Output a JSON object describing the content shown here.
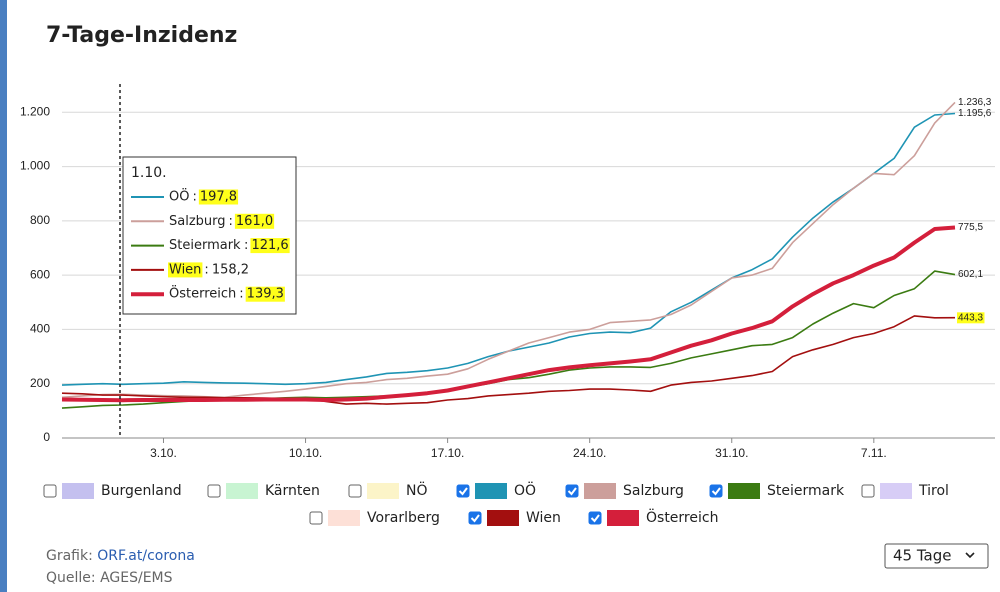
{
  "chart_data": {
    "type": "line",
    "title": "7-Tage-Inzidenz",
    "categories": [
      null,
      null,
      null,
      null,
      null,
      "3.10.",
      null,
      null,
      null,
      null,
      null,
      null,
      "10.10.",
      null,
      null,
      null,
      null,
      null,
      null,
      "17.10.",
      null,
      null,
      null,
      null,
      null,
      null,
      "24.10.",
      null,
      null,
      null,
      null,
      null,
      null,
      "31.10.",
      null,
      null,
      null,
      null,
      null,
      null,
      "7.11.",
      null,
      null,
      null,
      null
    ],
    "ylim": [
      0,
      1260
    ],
    "yticks": [
      0,
      200,
      400,
      600,
      800,
      {
        "value": 1000,
        "label": "1.000"
      },
      {
        "value": 1200,
        "label": "1.200"
      }
    ],
    "grid": true,
    "tooltip": {
      "title": "1.10.",
      "separator": ":"
    },
    "series": [
      {
        "name": "Burgenland",
        "color": "#c4c0ef",
        "checked": false
      },
      {
        "name": "Kärnten",
        "color": "#c8f4d2",
        "checked": false
      },
      {
        "name": "NÖ",
        "color": "#fcf4c8",
        "checked": false
      },
      {
        "name": "OÖ",
        "color": "#1f94b4",
        "checked": true,
        "tooltip_label": "197,8",
        "values": [
          195,
          198,
          200,
          197.8,
          200,
          202,
          207,
          205,
          203,
          202,
          200,
          198,
          200,
          205,
          215,
          225,
          238,
          242,
          248,
          258,
          275,
          300,
          320,
          335,
          350,
          372,
          385,
          390,
          388,
          405,
          465,
          500,
          545,
          590,
          620,
          660,
          740,
          810,
          870,
          920,
          975,
          1030,
          1145,
          1190,
          1195.6
        ],
        "value_labels": [
          null,
          null,
          null,
          null,
          null,
          null,
          null,
          null,
          null,
          null,
          null,
          null,
          null,
          null,
          null,
          null,
          null,
          null,
          null,
          null,
          null,
          null,
          null,
          null,
          null,
          null,
          null,
          null,
          null,
          null,
          null,
          null,
          null,
          null,
          null,
          null,
          null,
          null,
          null,
          null,
          null,
          null,
          null,
          null,
          "1.195,6"
        ]
      },
      {
        "name": "Salzburg",
        "color": "#cc9f9b",
        "checked": true,
        "tooltip_label": "161,0",
        "values": [
          150,
          155,
          160,
          161.0,
          158,
          156,
          155,
          152,
          150,
          158,
          165,
          172,
          180,
          190,
          200,
          205,
          215,
          220,
          228,
          235,
          255,
          290,
          320,
          350,
          370,
          390,
          400,
          425,
          430,
          435,
          455,
          490,
          540,
          590,
          600,
          625,
          720,
          790,
          860,
          920,
          975,
          970,
          1040,
          1160,
          1236.3
        ],
        "value_labels": [
          null,
          null,
          null,
          null,
          null,
          null,
          null,
          null,
          null,
          null,
          null,
          null,
          null,
          null,
          null,
          null,
          null,
          null,
          null,
          null,
          null,
          null,
          null,
          null,
          null,
          null,
          null,
          null,
          null,
          null,
          null,
          null,
          null,
          null,
          null,
          null,
          null,
          null,
          null,
          null,
          null,
          null,
          null,
          null,
          "1.236,3"
        ]
      },
      {
        "name": "Steiermark",
        "color": "#3b7b12",
        "checked": true,
        "tooltip_label": "121,6",
        "values": [
          110,
          115,
          120,
          121.6,
          125,
          130,
          135,
          138,
          140,
          142,
          145,
          148,
          150,
          148,
          150,
          152,
          155,
          160,
          168,
          178,
          188,
          200,
          215,
          222,
          235,
          250,
          258,
          262,
          262,
          260,
          275,
          295,
          310,
          325,
          340,
          345,
          370,
          420,
          460,
          495,
          480,
          525,
          550,
          615,
          602.1
        ],
        "value_labels": [
          null,
          null,
          null,
          null,
          null,
          null,
          null,
          null,
          null,
          null,
          null,
          null,
          null,
          null,
          null,
          null,
          null,
          null,
          null,
          null,
          null,
          null,
          null,
          null,
          null,
          null,
          null,
          null,
          null,
          null,
          null,
          null,
          null,
          null,
          null,
          null,
          null,
          null,
          null,
          null,
          null,
          null,
          null,
          null,
          "602,1"
        ]
      },
      {
        "name": "Tirol",
        "color": "#d7cdf6",
        "checked": false
      },
      {
        "name": "Vorarlberg",
        "color": "#fde0d7",
        "checked": false
      },
      {
        "name": "Wien",
        "color": "#a30f0f",
        "checked": true,
        "tooltip_label": "158,2",
        "values": [
          165,
          163,
          158,
          158.2,
          155,
          152,
          150,
          150,
          148,
          148,
          147,
          145,
          145,
          135,
          125,
          128,
          125,
          128,
          130,
          140,
          145,
          155,
          160,
          165,
          172,
          175,
          180,
          180,
          177,
          172,
          195,
          205,
          210,
          220,
          230,
          245,
          300,
          325,
          345,
          370,
          385,
          410,
          450,
          443,
          443.3
        ],
        "value_labels": [
          null,
          null,
          null,
          null,
          null,
          null,
          null,
          null,
          null,
          null,
          null,
          null,
          null,
          null,
          null,
          null,
          null,
          null,
          null,
          null,
          null,
          null,
          null,
          null,
          null,
          null,
          null,
          null,
          null,
          null,
          null,
          null,
          null,
          null,
          null,
          null,
          null,
          null,
          null,
          null,
          null,
          null,
          null,
          null,
          "443,3"
        ]
      },
      {
        "name": "Österreich",
        "color": "#d41f3b",
        "checked": true,
        "line_width": 4,
        "tooltip_label": "139,3",
        "values": [
          142,
          141,
          140,
          139.3,
          140,
          140,
          140,
          140,
          141,
          141,
          142,
          142,
          142,
          140,
          142,
          145,
          152,
          158,
          165,
          175,
          190,
          205,
          220,
          235,
          250,
          260,
          268,
          275,
          282,
          290,
          315,
          340,
          360,
          385,
          405,
          430,
          485,
          530,
          570,
          600,
          635,
          665,
          720,
          770,
          775.5
        ],
        "value_labels": [
          null,
          null,
          null,
          null,
          null,
          null,
          null,
          null,
          null,
          null,
          null,
          null,
          null,
          null,
          null,
          null,
          null,
          null,
          null,
          null,
          null,
          null,
          null,
          null,
          null,
          null,
          null,
          null,
          null,
          null,
          null,
          null,
          null,
          null,
          null,
          null,
          null,
          null,
          null,
          null,
          null,
          null,
          null,
          null,
          "775,5"
        ]
      }
    ]
  },
  "controls": {
    "range_select": "45 Tage"
  },
  "footer": {
    "grafik_label": "Grafik:",
    "grafik_link": "ORF.at/corona",
    "source": "Quelle: AGES/EMS"
  }
}
